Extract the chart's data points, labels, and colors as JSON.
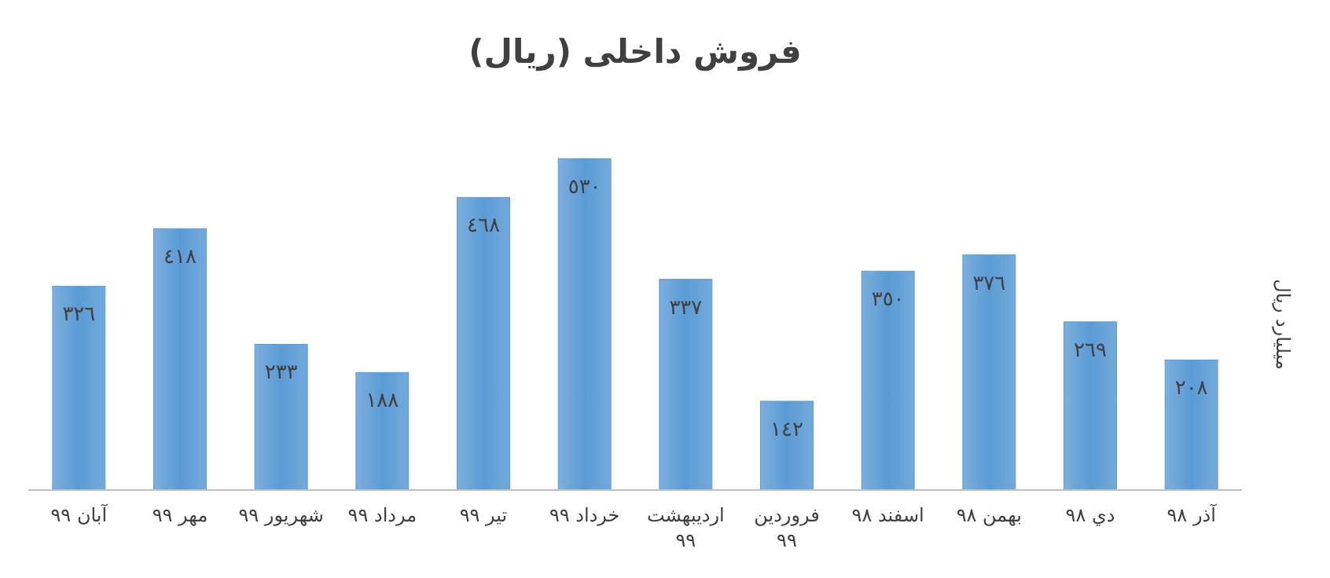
{
  "chart_data": {
    "type": "bar",
    "title": "فروش داخلی (ریال)",
    "ylabel": "میلیارد ریال",
    "categories": [
      "آبان ٩٩",
      "مهر ٩٩",
      "شهریور ٩٩",
      "مرداد ٩٩",
      "تیر ٩٩",
      "خرداد ٩٩",
      "اردیبهشت ٩٩",
      "فروردین ٩٩",
      "اسفند ٩٨",
      "بهمن ٩٨",
      "دي ٩٨",
      "آذر ٩٨"
    ],
    "values": [
      326,
      418,
      233,
      188,
      468,
      530,
      337,
      142,
      350,
      376,
      269,
      208
    ],
    "value_labels": [
      "٣٢٦",
      "٤١٨",
      "٢٣٣",
      "١٨٨",
      "٤٦٨",
      "٥٣٠",
      "٣٣٧",
      "١٤٢",
      "٣٥٠",
      "٣٧٦",
      "٢٦٩",
      "٢٠٨"
    ],
    "color": "#5b9bd5"
  }
}
